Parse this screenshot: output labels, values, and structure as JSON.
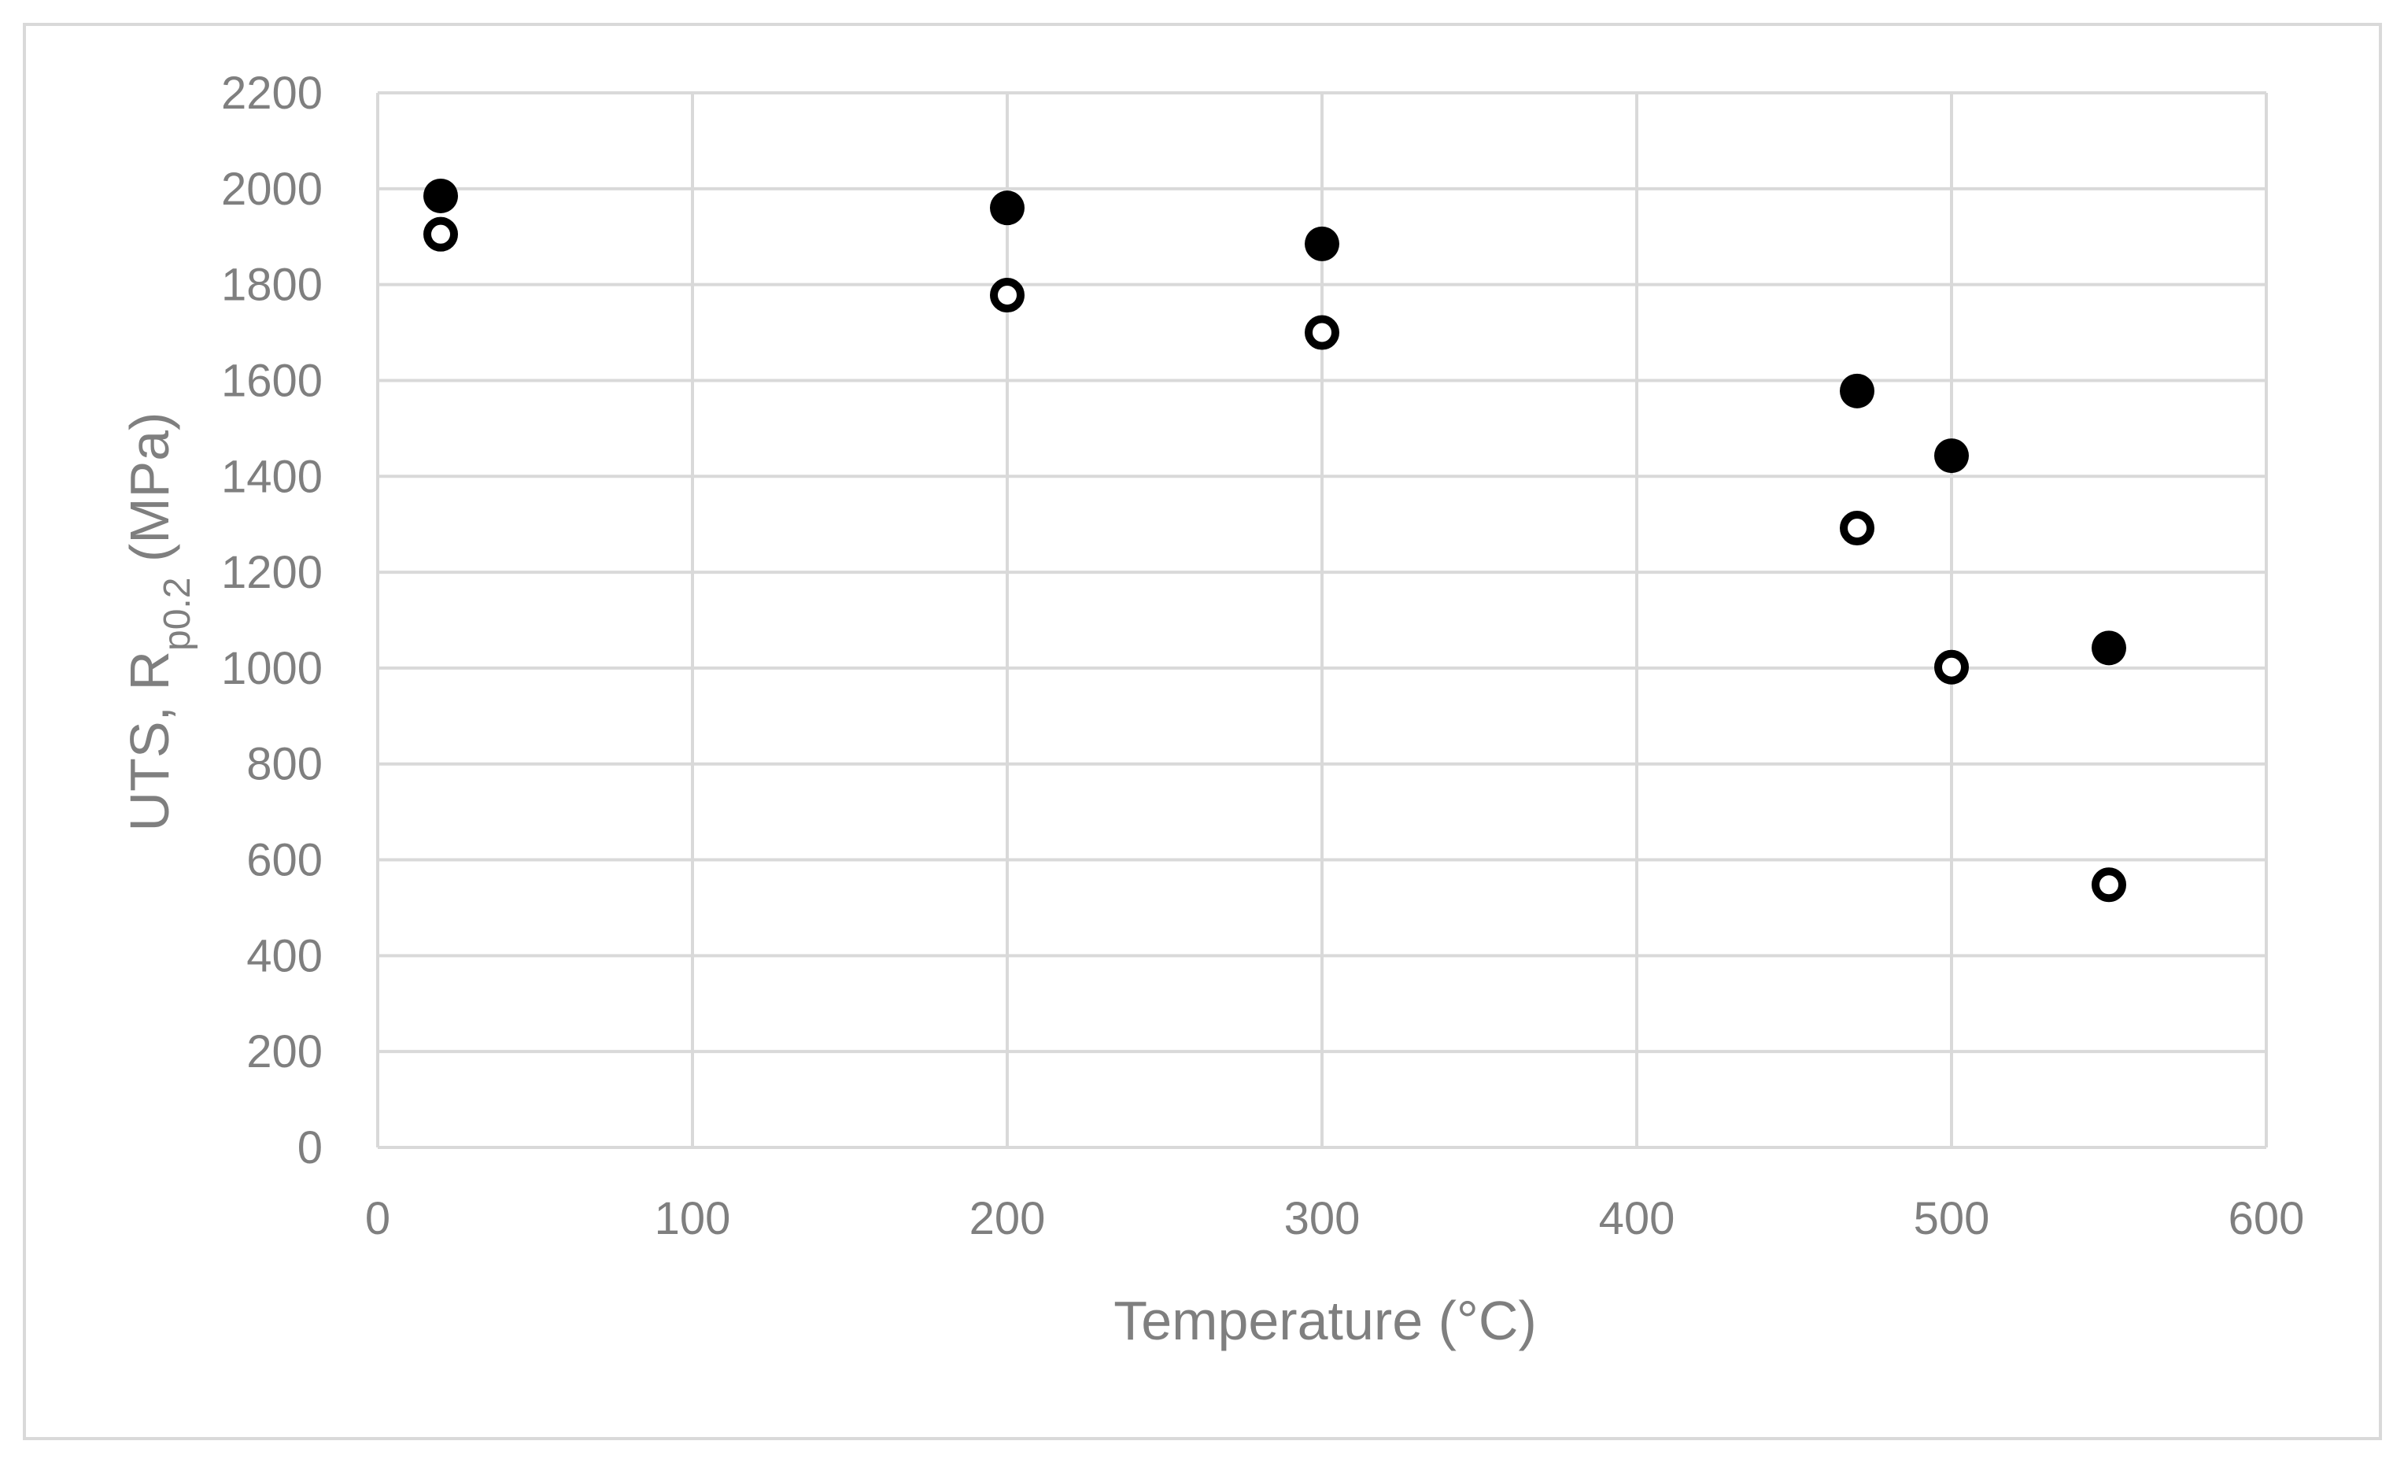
{
  "chart_data": {
    "type": "scatter",
    "title": "",
    "xlabel": "Temperature (°C)",
    "ylabel": {
      "prefix": "UTS, R",
      "subscript": "p0.2",
      "suffix": " (MPa)"
    },
    "xlim": [
      0,
      600
    ],
    "ylim": [
      0,
      2200
    ],
    "xticks": [
      0,
      100,
      200,
      300,
      400,
      500,
      600
    ],
    "yticks": [
      0,
      200,
      400,
      600,
      800,
      1000,
      1200,
      1400,
      1600,
      1800,
      2000,
      2200
    ],
    "grid": true,
    "legend": "none",
    "series": [
      {
        "marker": "filled-circle",
        "color": "#000000",
        "points": [
          {
            "x": 20,
            "y": 1985
          },
          {
            "x": 200,
            "y": 1960
          },
          {
            "x": 300,
            "y": 1885
          },
          {
            "x": 470,
            "y": 1578
          },
          {
            "x": 500,
            "y": 1443
          },
          {
            "x": 550,
            "y": 1042
          }
        ]
      },
      {
        "marker": "open-circle",
        "color": "#000000",
        "points": [
          {
            "x": 20,
            "y": 1905
          },
          {
            "x": 200,
            "y": 1778
          },
          {
            "x": 300,
            "y": 1700
          },
          {
            "x": 470,
            "y": 1292
          },
          {
            "x": 500,
            "y": 1002
          },
          {
            "x": 550,
            "y": 548
          }
        ]
      }
    ],
    "colors": {
      "grid": "#d9d9d9",
      "text": "#7f7f7f",
      "marker": "#000000"
    }
  }
}
